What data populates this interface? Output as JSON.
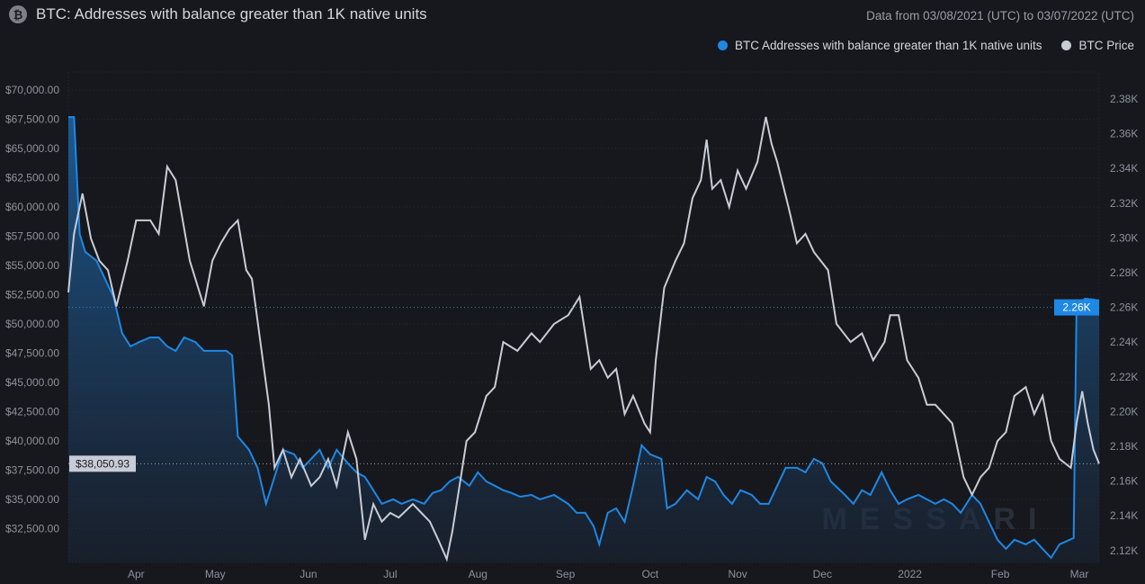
{
  "title": "BTC: Addresses with balance greater than 1K native units",
  "date_range": "Data from 03/08/2021 (UTC) to 03/07/2022 (UTC)",
  "watermark": "MESSARI",
  "chart_data": {
    "type": "line",
    "title": "BTC: Addresses with balance greater than 1K native units",
    "x_unit": "days since 03/08/2021",
    "xlim": [
      0,
      365
    ],
    "x_ticks": [
      {
        "label": "Apr",
        "day": 24
      },
      {
        "label": "May",
        "day": 52
      },
      {
        "label": "Jun",
        "day": 85
      },
      {
        "label": "Jul",
        "day": 114
      },
      {
        "label": "Aug",
        "day": 145
      },
      {
        "label": "Sep",
        "day": 176
      },
      {
        "label": "Oct",
        "day": 206
      },
      {
        "label": "Nov",
        "day": 237
      },
      {
        "label": "Dec",
        "day": 267
      },
      {
        "label": "2022",
        "day": 298
      },
      {
        "label": "Feb",
        "day": 330
      },
      {
        "label": "Mar",
        "day": 358
      }
    ],
    "left_axis": {
      "ylim": [
        27500,
        72000
      ],
      "ticks": [
        "$70,000.00",
        "$67,500.00",
        "$65,000.00",
        "$62,500.00",
        "$60,000.00",
        "$57,500.00",
        "$55,000.00",
        "$52,500.00",
        "$50,000.00",
        "$47,500.00",
        "$45,000.00",
        "$42,500.00",
        "$40,000.00",
        "$37,500.00",
        "$35,000.00",
        "$32,500.00"
      ],
      "tick_values": [
        70000,
        67500,
        65000,
        62500,
        60000,
        57500,
        55000,
        52500,
        50000,
        47500,
        45000,
        42500,
        40000,
        37500,
        35000,
        32500
      ],
      "current_label": "$38,050.93",
      "current_value": 38050.93
    },
    "right_axis": {
      "ticks": [
        "2.38K",
        "2.36K",
        "2.34K",
        "2.32K",
        "2.30K",
        "2.28K",
        "2.26K",
        "2.24K",
        "2.22K",
        "2.20K",
        "2.18K",
        "2.16K",
        "2.14K",
        "2.12K"
      ],
      "tick_values": [
        2.38,
        2.36,
        2.34,
        2.32,
        2.3,
        2.28,
        2.26,
        2.24,
        2.22,
        2.2,
        2.18,
        2.16,
        2.14,
        2.12
      ],
      "current_label": "2.26K",
      "current_value": 2.26
    },
    "series": [
      {
        "name": "BTC Addresses with balance greater than 1K native units",
        "axis": "right",
        "unit": "K",
        "color": "#1e88e5",
        "points": [
          [
            0,
            2.3696
          ],
          [
            2,
            2.3696
          ],
          [
            4,
            2.3023
          ],
          [
            6,
            2.292
          ],
          [
            10,
            2.2868
          ],
          [
            13,
            2.2764
          ],
          [
            16,
            2.266
          ],
          [
            19,
            2.2453
          ],
          [
            22,
            2.2375
          ],
          [
            25,
            2.24
          ],
          [
            29,
            2.2427
          ],
          [
            32,
            2.2427
          ],
          [
            35,
            2.2375
          ],
          [
            38,
            2.235
          ],
          [
            41,
            2.2427
          ],
          [
            45,
            2.24
          ],
          [
            48,
            2.235
          ],
          [
            51,
            2.235
          ],
          [
            56,
            2.235
          ],
          [
            58,
            2.2324
          ],
          [
            60,
            2.1857
          ],
          [
            64,
            2.178
          ],
          [
            67,
            2.1676
          ],
          [
            70,
            2.1469
          ],
          [
            73,
            2.1624
          ],
          [
            76,
            2.178
          ],
          [
            80,
            2.1754
          ],
          [
            83,
            2.1676
          ],
          [
            86,
            2.1728
          ],
          [
            89,
            2.178
          ],
          [
            92,
            2.1676
          ],
          [
            95,
            2.178
          ],
          [
            99,
            2.1702
          ],
          [
            102,
            2.165
          ],
          [
            105,
            2.1624
          ],
          [
            108,
            2.1547
          ],
          [
            111,
            2.1469
          ],
          [
            115,
            2.1495
          ],
          [
            118,
            2.1469
          ],
          [
            122,
            2.1495
          ],
          [
            126,
            2.1469
          ],
          [
            129,
            2.1531
          ],
          [
            132,
            2.1547
          ],
          [
            135,
            2.1598
          ],
          [
            138,
            2.1624
          ],
          [
            142,
            2.1573
          ],
          [
            145,
            2.165
          ],
          [
            148,
            2.1598
          ],
          [
            151,
            2.1573
          ],
          [
            154,
            2.1547
          ],
          [
            157,
            2.1531
          ],
          [
            160,
            2.151
          ],
          [
            164,
            2.152
          ],
          [
            167,
            2.1495
          ],
          [
            172,
            2.152
          ],
          [
            177,
            2.1469
          ],
          [
            180,
            2.1417
          ],
          [
            183,
            2.1417
          ],
          [
            186,
            2.134
          ],
          [
            188,
            2.1236
          ],
          [
            191,
            2.1417
          ],
          [
            194,
            2.1443
          ],
          [
            197,
            2.1365
          ],
          [
            200,
            2.1573
          ],
          [
            203,
            2.1806
          ],
          [
            206,
            2.1754
          ],
          [
            210,
            2.1728
          ],
          [
            212,
            2.1443
          ],
          [
            215,
            2.1469
          ],
          [
            219,
            2.1547
          ],
          [
            223,
            2.1495
          ],
          [
            226,
            2.1624
          ],
          [
            229,
            2.1598
          ],
          [
            232,
            2.152
          ],
          [
            235,
            2.1469
          ],
          [
            238,
            2.1547
          ],
          [
            242,
            2.152
          ],
          [
            245,
            2.1469
          ],
          [
            248,
            2.1469
          ],
          [
            251,
            2.1573
          ],
          [
            254,
            2.1676
          ],
          [
            258,
            2.1676
          ],
          [
            261,
            2.165
          ],
          [
            264,
            2.1728
          ],
          [
            267,
            2.1702
          ],
          [
            270,
            2.1598
          ],
          [
            275,
            2.152
          ],
          [
            278,
            2.1469
          ],
          [
            281,
            2.1547
          ],
          [
            284,
            2.152
          ],
          [
            288,
            2.165
          ],
          [
            291,
            2.1547
          ],
          [
            294,
            2.1469
          ],
          [
            297,
            2.1495
          ],
          [
            301,
            2.152
          ],
          [
            304,
            2.1495
          ],
          [
            307,
            2.1469
          ],
          [
            310,
            2.1495
          ],
          [
            313,
            2.1469
          ],
          [
            316,
            2.1417
          ],
          [
            320,
            2.152
          ],
          [
            323,
            2.1469
          ],
          [
            326,
            2.1365
          ],
          [
            329,
            2.1262
          ],
          [
            332,
            2.121
          ],
          [
            335,
            2.1262
          ],
          [
            339,
            2.1236
          ],
          [
            342,
            2.1262
          ],
          [
            345,
            2.121
          ],
          [
            348,
            2.1158
          ],
          [
            351,
            2.1236
          ],
          [
            356,
            2.1272
          ],
          [
            357,
            2.2609
          ],
          [
            360,
            2.265
          ],
          [
            363,
            2.2645
          ],
          [
            365,
            2.2635
          ]
        ]
      },
      {
        "name": "BTC Price",
        "axis": "left",
        "unit": "USD",
        "color": "#c8ccd6",
        "points": [
          [
            0,
            52700
          ],
          [
            2,
            57700
          ],
          [
            5,
            61150
          ],
          [
            8,
            57300
          ],
          [
            11,
            55400
          ],
          [
            14,
            54600
          ],
          [
            17,
            51500
          ],
          [
            21,
            55400
          ],
          [
            24,
            58850
          ],
          [
            29,
            58850
          ],
          [
            32,
            57700
          ],
          [
            35,
            63450
          ],
          [
            38,
            62300
          ],
          [
            43,
            55400
          ],
          [
            48,
            51500
          ],
          [
            51,
            55400
          ],
          [
            54,
            56900
          ],
          [
            57,
            58100
          ],
          [
            60,
            58850
          ],
          [
            63,
            54600
          ],
          [
            65,
            53850
          ],
          [
            68,
            48450
          ],
          [
            71,
            43100
          ],
          [
            73,
            37700
          ],
          [
            76,
            39250
          ],
          [
            79,
            36900
          ],
          [
            82,
            38450
          ],
          [
            86,
            36150
          ],
          [
            89,
            36900
          ],
          [
            92,
            38450
          ],
          [
            95,
            36150
          ],
          [
            99,
            40750
          ],
          [
            102,
            38450
          ],
          [
            105,
            31550
          ],
          [
            108,
            34600
          ],
          [
            111,
            33100
          ],
          [
            114,
            33850
          ],
          [
            117,
            33450
          ],
          [
            122,
            34600
          ],
          [
            125,
            33850
          ],
          [
            128,
            33100
          ],
          [
            131,
            31550
          ],
          [
            134,
            29900
          ],
          [
            136,
            32300
          ],
          [
            141,
            40000
          ],
          [
            144,
            40750
          ],
          [
            148,
            43850
          ],
          [
            151,
            44600
          ],
          [
            154,
            48450
          ],
          [
            159,
            47700
          ],
          [
            164,
            49200
          ],
          [
            167,
            48450
          ],
          [
            172,
            50000
          ],
          [
            177,
            50750
          ],
          [
            181,
            52300
          ],
          [
            185,
            46150
          ],
          [
            188,
            46900
          ],
          [
            191,
            45400
          ],
          [
            194,
            46150
          ],
          [
            197,
            42300
          ],
          [
            200,
            43850
          ],
          [
            204,
            41500
          ],
          [
            206,
            40750
          ],
          [
            208,
            46900
          ],
          [
            211,
            53100
          ],
          [
            215,
            55400
          ],
          [
            218,
            56900
          ],
          [
            221,
            60750
          ],
          [
            224,
            62300
          ],
          [
            226,
            65750
          ],
          [
            228,
            61550
          ],
          [
            231,
            62300
          ],
          [
            234,
            60000
          ],
          [
            237,
            63100
          ],
          [
            240,
            61550
          ],
          [
            244,
            63850
          ],
          [
            247,
            67700
          ],
          [
            249,
            65400
          ],
          [
            251,
            63850
          ],
          [
            255,
            60000
          ],
          [
            258,
            56900
          ],
          [
            261,
            57700
          ],
          [
            264,
            56150
          ],
          [
            269,
            54600
          ],
          [
            272,
            50000
          ],
          [
            277,
            48450
          ],
          [
            281,
            49200
          ],
          [
            285,
            46900
          ],
          [
            289,
            48450
          ],
          [
            291,
            50750
          ],
          [
            294,
            50750
          ],
          [
            297,
            46900
          ],
          [
            301,
            45400
          ],
          [
            304,
            43100
          ],
          [
            307,
            43100
          ],
          [
            310,
            42300
          ],
          [
            313,
            41500
          ],
          [
            317,
            36900
          ],
          [
            320,
            35400
          ],
          [
            323,
            36900
          ],
          [
            326,
            37700
          ],
          [
            329,
            40000
          ],
          [
            332,
            40750
          ],
          [
            335,
            43850
          ],
          [
            339,
            44600
          ],
          [
            342,
            42300
          ],
          [
            345,
            43850
          ],
          [
            348,
            40000
          ],
          [
            351,
            38450
          ],
          [
            355,
            37700
          ],
          [
            357,
            41500
          ],
          [
            359,
            44250
          ],
          [
            361,
            41500
          ],
          [
            363,
            39250
          ],
          [
            365,
            38050.93
          ]
        ]
      }
    ]
  }
}
